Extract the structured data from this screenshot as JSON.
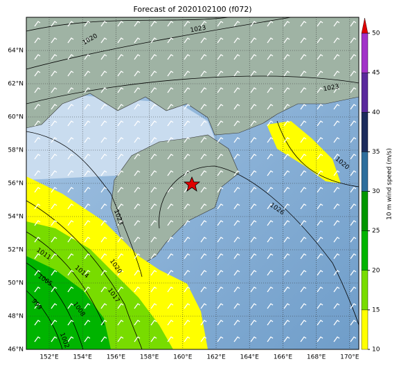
{
  "title": "Forecast of 2020102100 (f072)",
  "map": {
    "lon_ticks": [
      "152°E",
      "154°E",
      "156°E",
      "158°E",
      "160°E",
      "162°E",
      "164°E",
      "166°E",
      "168°E",
      "170°E"
    ],
    "lat_ticks": [
      "46°N",
      "48°N",
      "50°N",
      "52°N",
      "54°N",
      "56°N",
      "58°N",
      "60°N",
      "62°N",
      "64°N"
    ],
    "contour_labels": [
      "1020",
      "1023",
      "1023",
      "1020",
      "1026",
      "1023",
      "1020",
      "1017",
      "1014",
      "1011",
      "1008",
      "1005",
      "1002",
      "999"
    ]
  },
  "colorbar": {
    "label": "10 m wind speed (m/s)",
    "ticks": [
      10,
      15,
      20,
      25,
      30,
      35,
      40,
      45,
      50
    ],
    "colors": [
      "#ffff00",
      "#78dc00",
      "#00b400",
      "#009600",
      "#2e6e9c",
      "#1c2c5c",
      "#5a2a9c",
      "#a232c8"
    ],
    "extend_color": "#e00000"
  }
}
